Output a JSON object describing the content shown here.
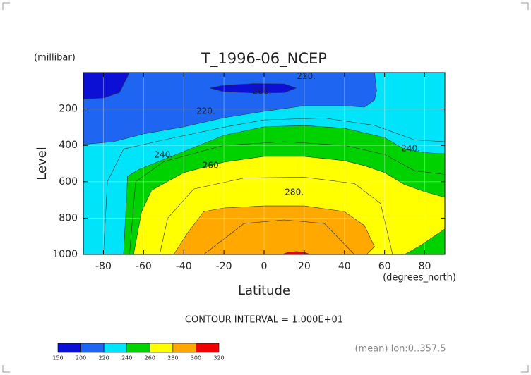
{
  "chart_data": {
    "type": "contour",
    "title": "T_1996-06_NCEP",
    "xlabel": "Latitude",
    "xunit": "(degrees_north)",
    "ylabel": "Level",
    "yunit": "(millibar)",
    "xlim": [
      -90,
      90
    ],
    "xticks": [
      -80,
      -60,
      -40,
      -20,
      0,
      20,
      40,
      60,
      80
    ],
    "ylim": [
      1000,
      0
    ],
    "yticks": [
      200,
      400,
      600,
      800,
      1000
    ],
    "grid": true,
    "levels": [
      150,
      200,
      220,
      240,
      260,
      280,
      300,
      320
    ],
    "colors": [
      "#0c10d4",
      "#1e66f2",
      "#00e4fa",
      "#00d200",
      "#ffff00",
      "#ffa800",
      "#f00000"
    ],
    "contours": [
      {
        "level": 200,
        "x": [
          -90,
          -80,
          -72,
          -67,
          90,
          90,
          -90,
          null,
          -27,
          -20,
          -5,
          10,
          16,
          10,
          -5,
          -20
        ],
        "y": [
          145,
          140,
          110,
          0,
          0,
          1000,
          1000,
          null,
          85,
          70,
          60,
          62,
          85,
          110,
          112,
          105
        ]
      },
      {
        "level": 220,
        "x": [
          -90,
          -75,
          -60,
          -40,
          -20,
          0,
          20,
          40,
          50,
          55,
          56,
          55,
          90,
          90,
          -90
        ],
        "y": [
          395,
          380,
          337,
          298,
          248,
          213,
          182,
          182,
          190,
          150,
          100,
          0,
          0,
          1000,
          1000
        ]
      },
      {
        "level": 230,
        "x": [
          -80,
          -78,
          -70,
          -50,
          -20,
          0,
          30,
          55,
          75,
          90,
          90
        ],
        "y": [
          1000,
          600,
          420,
          370,
          300,
          260,
          250,
          290,
          370,
          380,
          1000
        ]
      },
      {
        "level": 240,
        "x": [
          -70,
          -69,
          -68,
          -62,
          -40,
          -20,
          0,
          20,
          40,
          60,
          70,
          80,
          90,
          90
        ],
        "y": [
          1000,
          800,
          570,
          531,
          434,
          345,
          298,
          291,
          306,
          357,
          422,
          440,
          446,
          1000
        ]
      },
      {
        "level": 250,
        "x": [
          -67,
          -64,
          -50,
          -20,
          10,
          40,
          60,
          75,
          90,
          90
        ],
        "y": [
          1000,
          600,
          490,
          400,
          380,
          400,
          450,
          540,
          560,
          1000
        ]
      },
      {
        "level": 260,
        "x": [
          -65,
          -61,
          -56,
          -40,
          -20,
          0,
          20,
          40,
          50,
          60,
          70,
          80,
          90,
          90,
          78,
          70
        ],
        "y": [
          1000,
          764,
          647,
          550,
          492,
          461,
          461,
          484,
          512,
          550,
          616,
          655,
          686,
          860,
          950,
          1000
        ]
      },
      {
        "level": 270,
        "x": [
          -52,
          -48,
          -35,
          -10,
          20,
          45,
          58,
          64
        ],
        "y": [
          1000,
          800,
          640,
          580,
          575,
          610,
          720,
          1000
        ]
      },
      {
        "level": 280,
        "x": [
          -45,
          -38,
          -30,
          -20,
          0,
          20,
          40,
          50,
          55,
          51
        ],
        "y": [
          1000,
          880,
          764,
          744,
          733,
          733,
          764,
          841,
          957,
          1000
        ]
      },
      {
        "level": 290,
        "x": [
          -30,
          -10,
          10,
          30,
          45
        ],
        "y": [
          1000,
          830,
          810,
          830,
          1000
        ]
      },
      {
        "level": 300,
        "x": [
          9,
          12,
          16,
          20,
          23
        ],
        "y": [
          1000,
          988,
          984,
          988,
          1000
        ]
      }
    ],
    "contour_labels": [
      {
        "value": 220,
        "label": "220.",
        "x": -29,
        "y": 213
      },
      {
        "value": 200,
        "label": "200.",
        "x": -1,
        "y": 105
      },
      {
        "value": 220,
        "label": "220.",
        "x": 21,
        "y": 22
      },
      {
        "value": 240,
        "label": "240.",
        "x": -50,
        "y": 453
      },
      {
        "value": 260,
        "label": "260.",
        "x": -26,
        "y": 512
      },
      {
        "value": 280,
        "label": "280.",
        "x": 15,
        "y": 659
      },
      {
        "value": 240,
        "label": "240.",
        "x": 73,
        "y": 419
      }
    ],
    "contour_interval": "CONTOUR INTERVAL = 1.000E+01",
    "note": "(mean) lon:0..357.5"
  }
}
